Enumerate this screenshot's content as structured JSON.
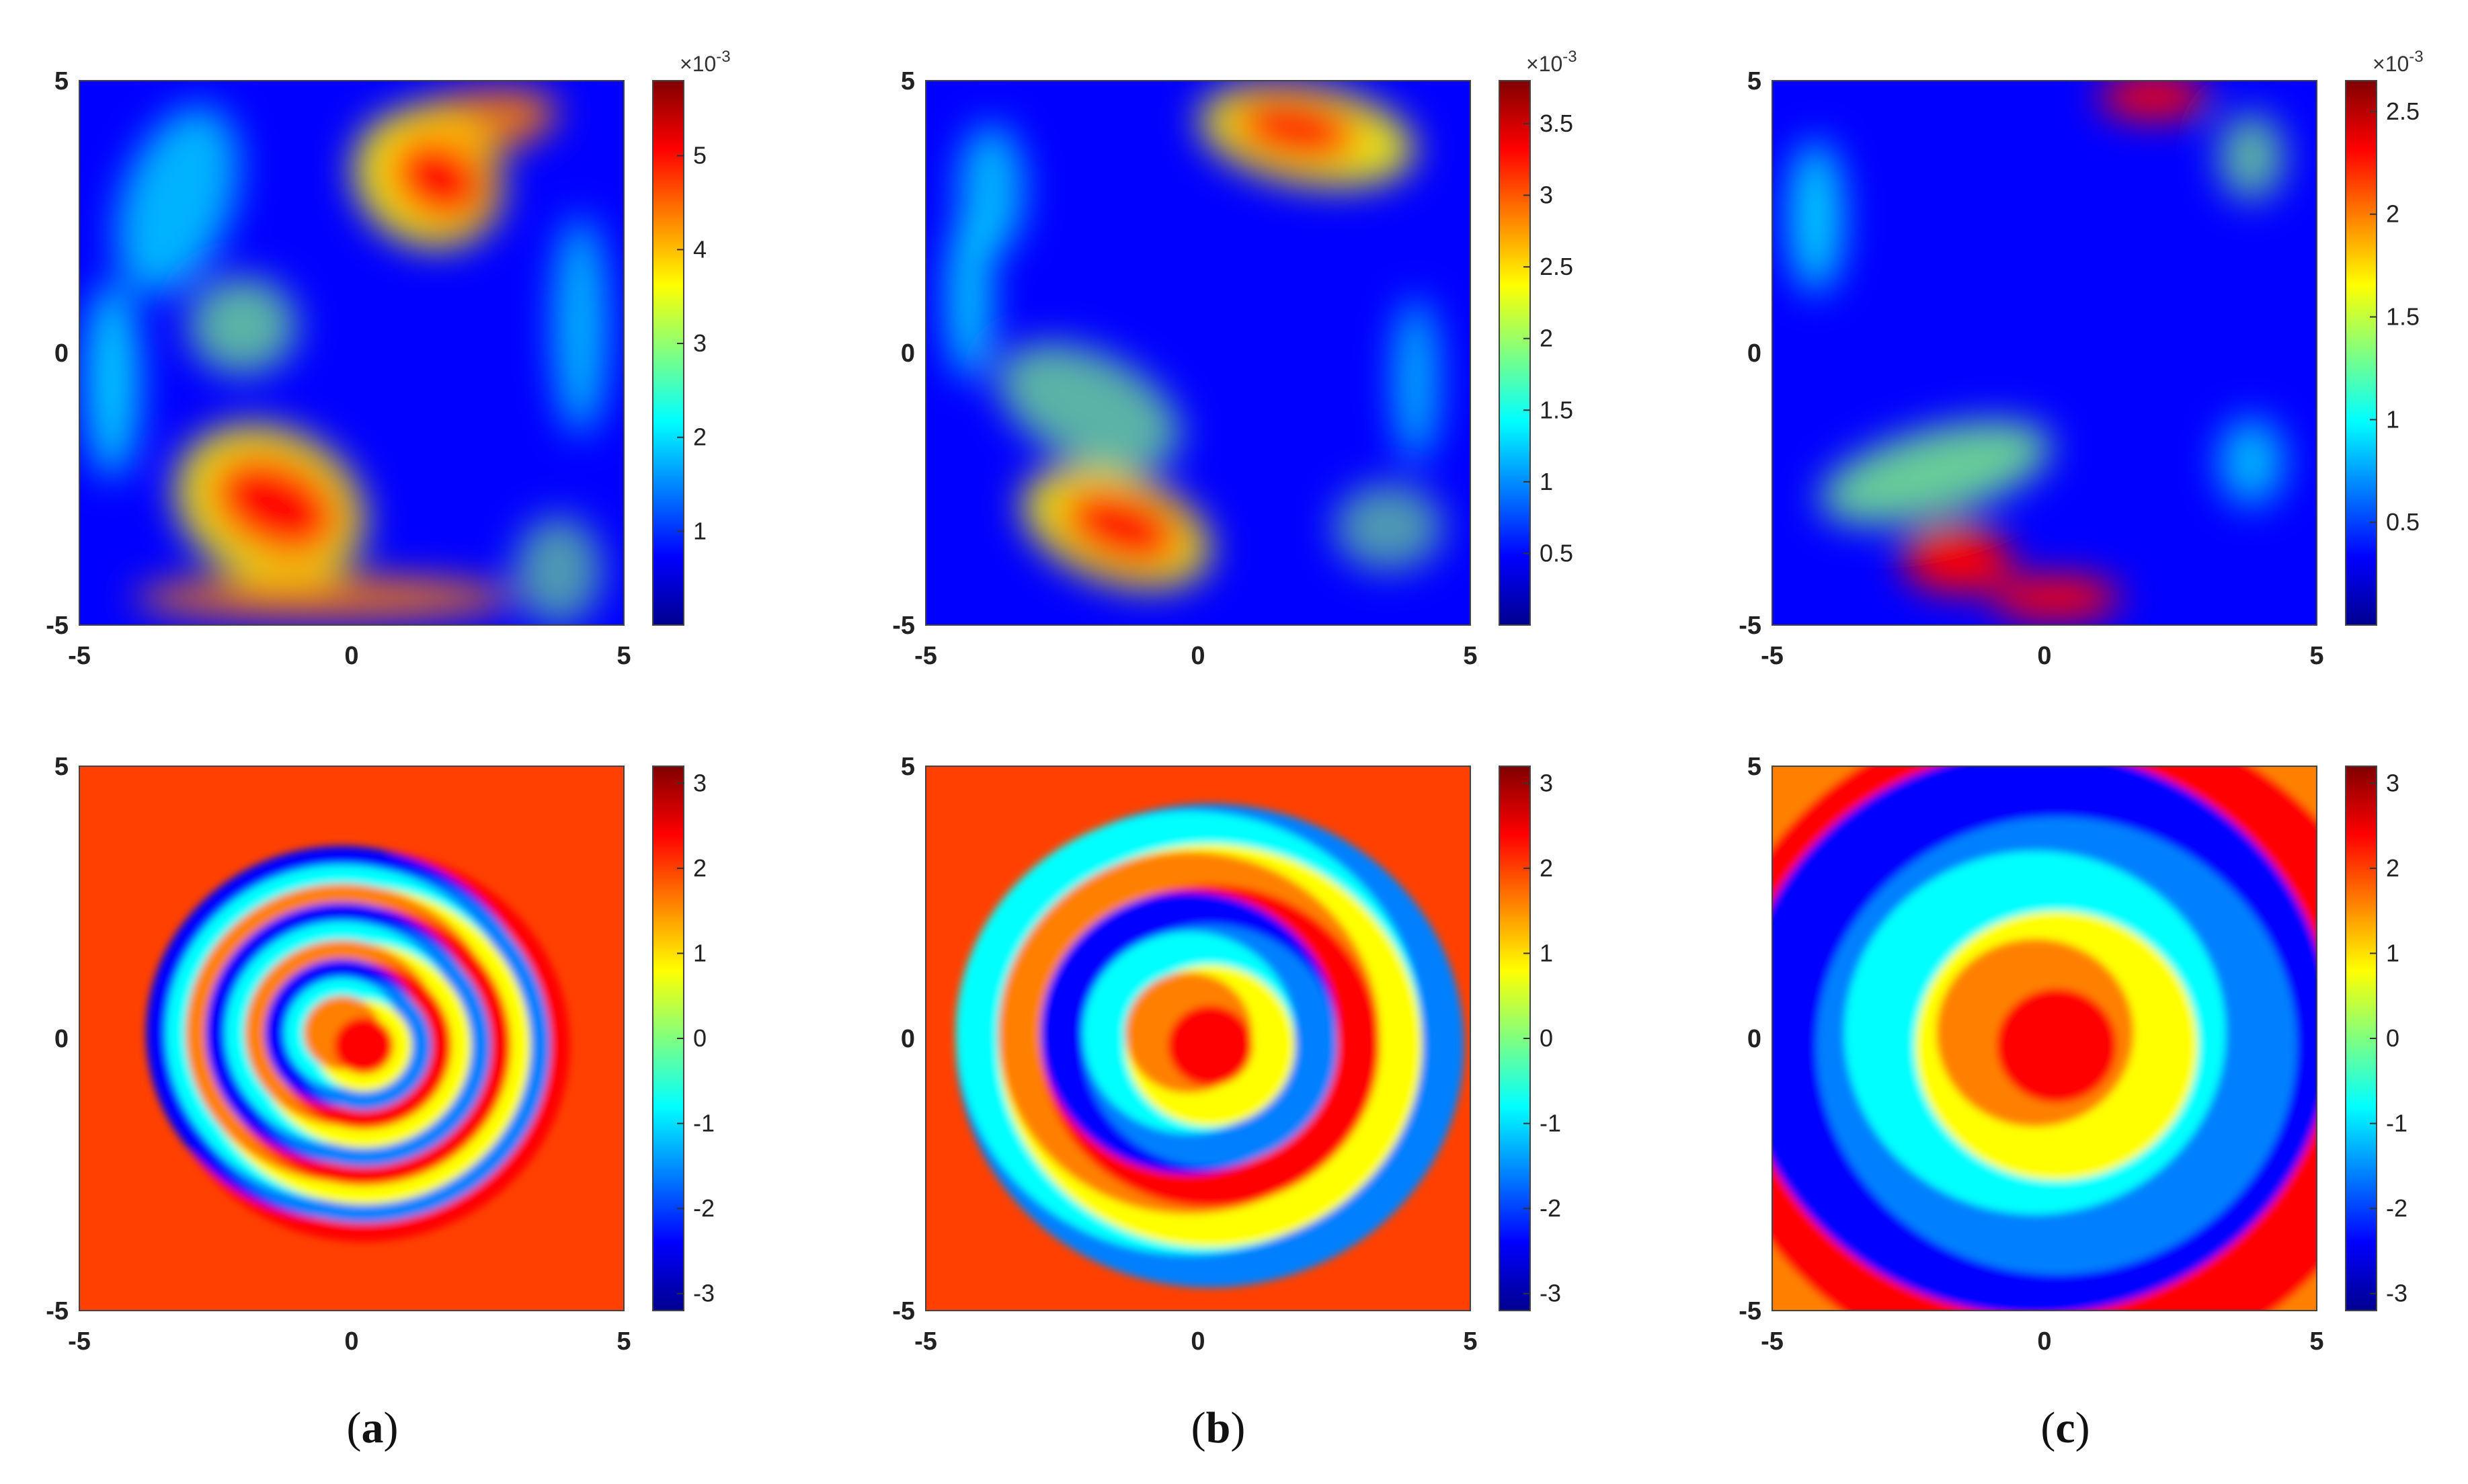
{
  "panels": [
    {
      "caption_open": "(",
      "caption_letter": "a",
      "caption_close": ")"
    },
    {
      "caption_open": "(",
      "caption_letter": "b",
      "caption_close": ")"
    },
    {
      "caption_open": "(",
      "caption_letter": "c",
      "caption_close": ")"
    }
  ],
  "colormap": [
    "#00008f",
    "#0000ff",
    "#0080ff",
    "#00ffff",
    "#80ff80",
    "#ffff00",
    "#ff8000",
    "#ff0000",
    "#800000"
  ],
  "chart_data": [
    {
      "type": "heatmap",
      "panel": "a",
      "row": "amplitude",
      "xlim": [
        -5,
        5
      ],
      "ylim": [
        -5,
        5
      ],
      "xticks": [
        "-5",
        "0",
        "5"
      ],
      "yticks": [
        "5",
        "0",
        "-5"
      ],
      "colorbar": {
        "range": [
          0,
          5.8
        ],
        "ticks": [
          "5",
          "4",
          "3",
          "2",
          "1"
        ],
        "exponent_base": "×10",
        "exponent_power": "-3"
      }
    },
    {
      "type": "heatmap",
      "panel": "b",
      "row": "amplitude",
      "xlim": [
        -5,
        5
      ],
      "ylim": [
        -5,
        5
      ],
      "xticks": [
        "-5",
        "0",
        "5"
      ],
      "yticks": [
        "5",
        "0",
        "-5"
      ],
      "colorbar": {
        "range": [
          0,
          3.8
        ],
        "ticks": [
          "3.5",
          "3",
          "2.5",
          "2",
          "1.5",
          "1",
          "0.5"
        ],
        "exponent_base": "×10",
        "exponent_power": "-3"
      }
    },
    {
      "type": "heatmap",
      "panel": "c",
      "row": "amplitude",
      "xlim": [
        -5,
        5
      ],
      "ylim": [
        -5,
        5
      ],
      "xticks": [
        "-5",
        "0",
        "5"
      ],
      "yticks": [
        "5",
        "0",
        "-5"
      ],
      "colorbar": {
        "range": [
          0,
          2.65
        ],
        "ticks": [
          "2.5",
          "2",
          "1.5",
          "1",
          "0.5"
        ],
        "exponent_base": "×10",
        "exponent_power": "-3"
      }
    },
    {
      "type": "heatmap",
      "panel": "a",
      "row": "phase",
      "xlim": [
        -5,
        5
      ],
      "ylim": [
        -5,
        5
      ],
      "xticks": [
        "-5",
        "0",
        "5"
      ],
      "yticks": [
        "5",
        "0",
        "-5"
      ],
      "colorbar": {
        "range": [
          -3.2,
          3.2
        ],
        "ticks": [
          "3",
          "2",
          "1",
          "0",
          "-1",
          "-2",
          "-3"
        ]
      }
    },
    {
      "type": "heatmap",
      "panel": "b",
      "row": "phase",
      "xlim": [
        -5,
        5
      ],
      "ylim": [
        -5,
        5
      ],
      "xticks": [
        "-5",
        "0",
        "5"
      ],
      "yticks": [
        "5",
        "0",
        "-5"
      ],
      "colorbar": {
        "range": [
          -3.2,
          3.2
        ],
        "ticks": [
          "3",
          "2",
          "1",
          "0",
          "-1",
          "-2",
          "-3"
        ]
      }
    },
    {
      "type": "heatmap",
      "panel": "c",
      "row": "phase",
      "xlim": [
        -5,
        5
      ],
      "ylim": [
        -5,
        5
      ],
      "xticks": [
        "-5",
        "0",
        "5"
      ],
      "yticks": [
        "5",
        "0",
        "-5"
      ],
      "colorbar": {
        "range": [
          -3.2,
          3.2
        ],
        "ticks": [
          "3",
          "2",
          "1",
          "0",
          "-1",
          "-2",
          "-3"
        ]
      }
    }
  ]
}
